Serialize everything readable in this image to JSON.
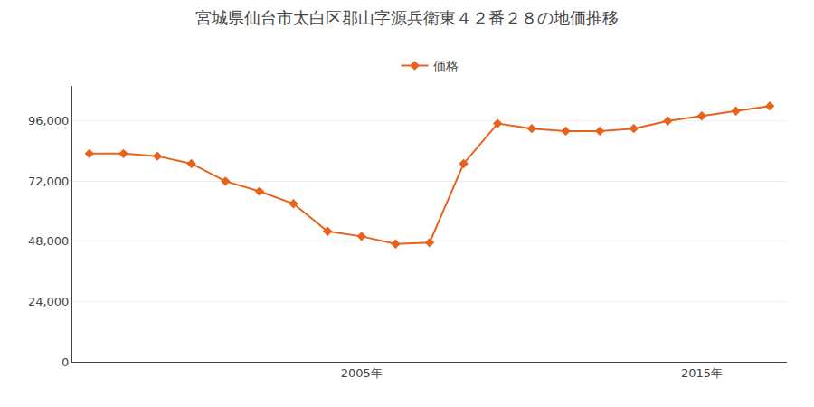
{
  "chart_data": {
    "type": "line",
    "title": "宮城県仙台市太白区郡山字源兵衛東４２番２８の地価推移",
    "x": [
      1997,
      1998,
      1999,
      2000,
      2001,
      2002,
      2003,
      2004,
      2005,
      2006,
      2007,
      2008,
      2009,
      2010,
      2011,
      2012,
      2013,
      2014,
      2015,
      2016,
      2017
    ],
    "series": [
      {
        "name": "価格",
        "color": "#e8621a",
        "marker": "diamond",
        "line_style": "solid",
        "values": [
          83000,
          83000,
          82000,
          79000,
          72000,
          68000,
          63000,
          52000,
          50000,
          47000,
          47500,
          79000,
          95000,
          93000,
          92000,
          92000,
          93000,
          96000,
          98000,
          100000,
          102000
        ]
      }
    ],
    "xlim": [
      1996.5,
      2017.5
    ],
    "xticks": [
      {
        "value": 2005,
        "label": "2005年"
      },
      {
        "value": 2015,
        "label": "2015年"
      }
    ],
    "ylim": [
      0,
      110000
    ],
    "yticks": [
      0,
      {
        "value": 24000,
        "label": "24,000"
      },
      {
        "value": 48000,
        "label": "48,000"
      },
      {
        "value": 72000,
        "label": "72,000"
      },
      {
        "value": 96000,
        "label": "96,000"
      }
    ],
    "grid": "y",
    "legend": "top"
  }
}
